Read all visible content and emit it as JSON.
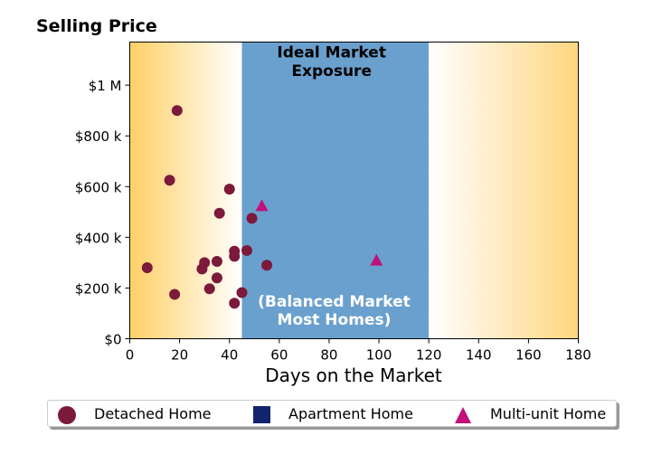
{
  "chart_data": {
    "type": "scatter",
    "title": "Selling Price",
    "xlabel": "Days on the Market",
    "ylabel": "",
    "xlim": [
      0,
      180
    ],
    "ylim": [
      0,
      1170000
    ],
    "x_ticks": [
      0,
      20,
      40,
      60,
      80,
      100,
      120,
      140,
      160,
      180
    ],
    "x_tick_labels": [
      "0",
      "20",
      "40",
      "60",
      "80",
      "100",
      "120",
      "140",
      "160",
      "180"
    ],
    "y_ticks": [
      0,
      200000,
      400000,
      600000,
      800000,
      1000000
    ],
    "y_tick_labels": [
      "$0",
      "$200 k",
      "$400 k",
      "$600 k",
      "$800 k",
      "$1 M"
    ],
    "grid": false,
    "legend_position": "bottom",
    "bands": [
      {
        "x_range": [
          0,
          45
        ],
        "fill": "gradient",
        "color_edge": "#ffd066",
        "color_inner": "#ffffff"
      },
      {
        "x_range": [
          45,
          120
        ],
        "fill": "solid",
        "color": "#6aa0cd"
      },
      {
        "x_range": [
          120,
          180
        ],
        "fill": "gradient",
        "color_edge": "#ffd680",
        "color_inner": "#ffffff"
      }
    ],
    "annotations": [
      {
        "text": "Ideal Market",
        "x": 81,
        "y": 1130000,
        "color": "#000000"
      },
      {
        "text": "Exposure",
        "x": 81,
        "y": 1058000,
        "color": "#000000"
      },
      {
        "text": "(Balanced Market",
        "x": 82,
        "y": 148000,
        "color": "#ffffff"
      },
      {
        "text": "Most Homes)",
        "x": 82,
        "y": 77000,
        "color": "#ffffff"
      }
    ],
    "series": [
      {
        "name": "Detached Home",
        "marker": "circle",
        "color": "#7b1a3a",
        "points": [
          [
            7,
            280000
          ],
          [
            18,
            175000
          ],
          [
            16,
            625000
          ],
          [
            19,
            900000
          ],
          [
            29,
            275000
          ],
          [
            30,
            300000
          ],
          [
            32,
            197000
          ],
          [
            35,
            240000
          ],
          [
            35,
            305000
          ],
          [
            36,
            495000
          ],
          [
            40,
            590000
          ],
          [
            42,
            140000
          ],
          [
            42,
            325000
          ],
          [
            42,
            345000
          ],
          [
            45,
            182000
          ],
          [
            47,
            348000
          ],
          [
            49,
            475000
          ],
          [
            55,
            290000
          ]
        ]
      },
      {
        "name": "Apartment Home",
        "marker": "square",
        "color": "#13246e",
        "points": []
      },
      {
        "name": "Multi-unit Home",
        "marker": "triangle",
        "color": "#c0127a",
        "points": [
          [
            53,
            525000
          ],
          [
            99,
            310000
          ]
        ]
      }
    ]
  }
}
